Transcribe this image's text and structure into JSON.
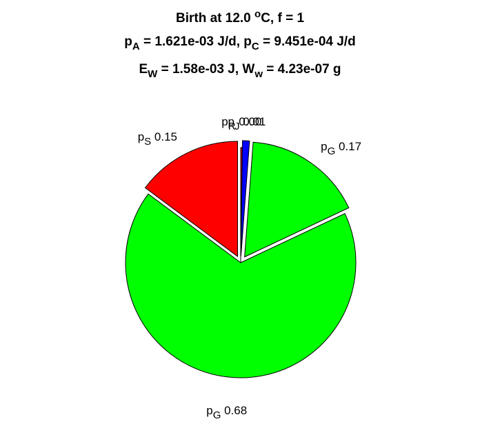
{
  "chart_data": {
    "type": "pie",
    "title_lines": [
      {
        "parts": [
          {
            "t": "Birth at 12.0 "
          },
          {
            "t": "o",
            "sup": true
          },
          {
            "t": "C, f = 1"
          }
        ]
      },
      {
        "parts": [
          {
            "t": "p"
          },
          {
            "t": "A",
            "sub": true
          },
          {
            "t": " = 1.621e-03 J/d, p"
          },
          {
            "t": "C",
            "sub": true
          },
          {
            "t": " = 9.451e-04 J/d"
          }
        ]
      },
      {
        "parts": [
          {
            "t": "E"
          },
          {
            "t": "W",
            "sub": true
          },
          {
            "t": " = 1.58e-03 J, W"
          },
          {
            "t": "w",
            "sub": true
          },
          {
            "t": " = 4.23e-07 g"
          }
        ]
      }
    ],
    "slices": [
      {
        "symbol": "p",
        "sub": "R",
        "value_label": "0.00",
        "value": 0.002,
        "color": "#ff0000",
        "exploded": false,
        "label_side": "left"
      },
      {
        "symbol": "p",
        "sub": "J",
        "value_label": "0.01",
        "value": 0.01,
        "color": "#0000ff",
        "exploded": true,
        "label_side": "left"
      },
      {
        "symbol": "p",
        "sub": "G",
        "value_label": "0.17",
        "value": 0.17,
        "color": "#00ff00",
        "exploded": true,
        "label_side": "right"
      },
      {
        "symbol": "p",
        "sub": "G",
        "value_label": "0.68",
        "value": 0.68,
        "color": "#00ff00",
        "exploded": false,
        "label_side": "center"
      },
      {
        "symbol": "p",
        "sub": "S",
        "value_label": "0.15",
        "value": 0.15,
        "color": "#ff0000",
        "exploded": true,
        "label_side": "left"
      }
    ],
    "start_angle_deg": 90,
    "direction": "clockwise",
    "legend": "none",
    "grid": false
  }
}
